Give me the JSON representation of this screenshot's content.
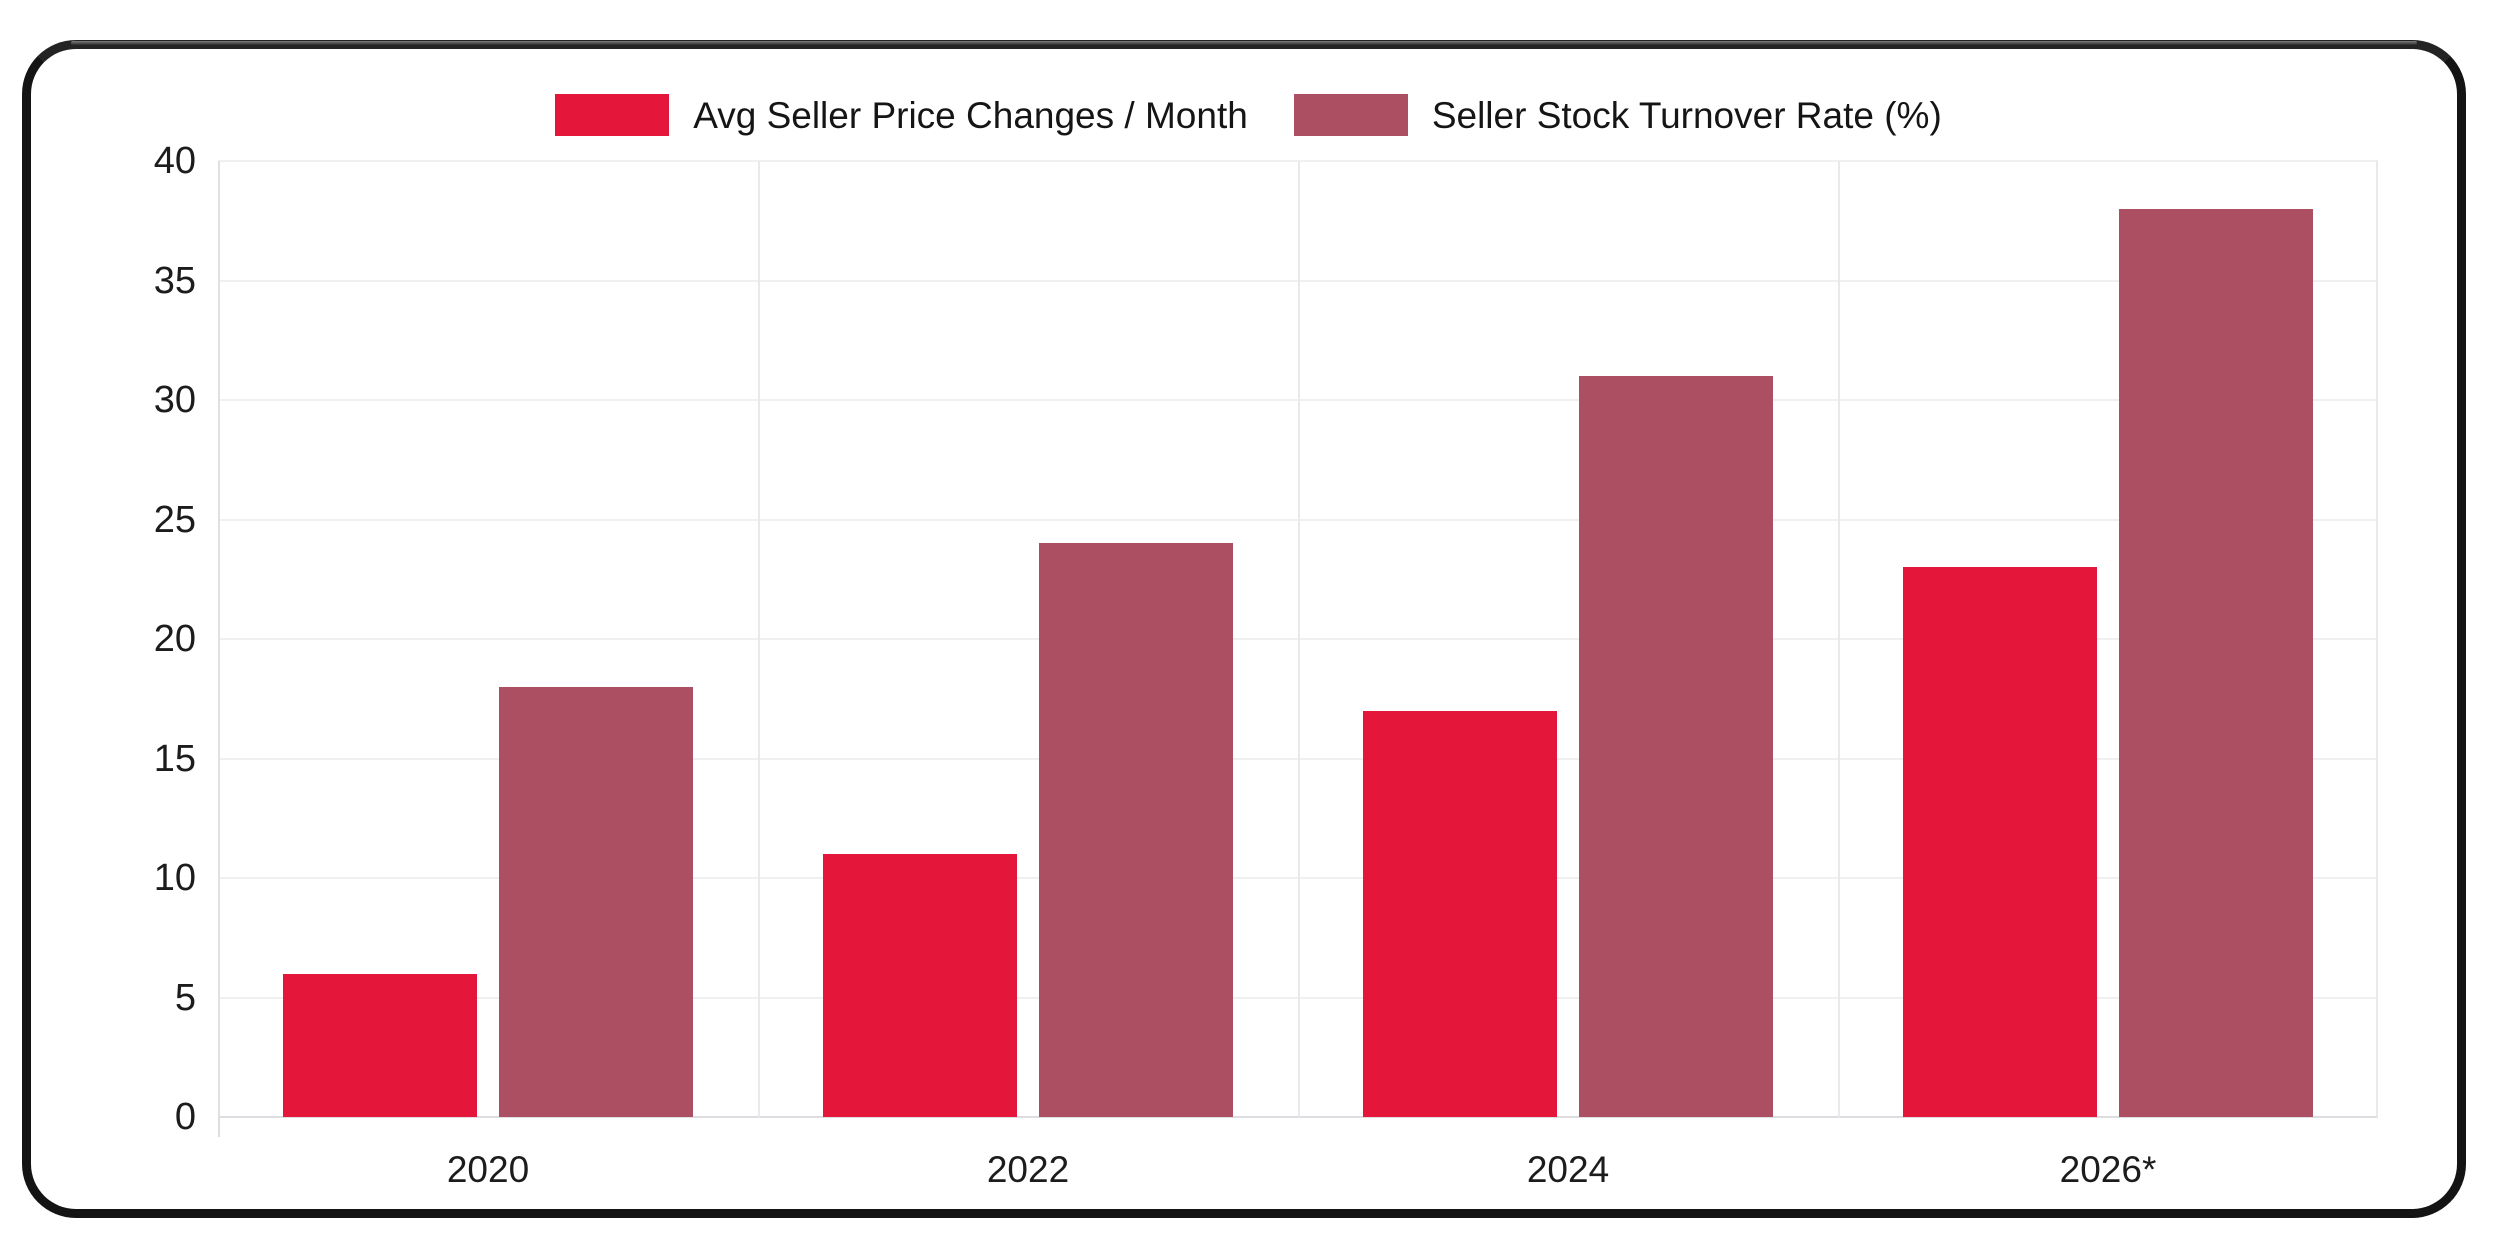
{
  "colors": {
    "series_price_changes": "#e4163a",
    "series_turnover_rate": "#ad4f63",
    "frame_border": "#141414",
    "gridline": "#f0f0f2",
    "axis_line": "#dedee2",
    "text": "#1c1c1c",
    "background": "#ffffff"
  },
  "legend": {
    "item_1": "Avg Seller Price Changes / Month",
    "item_2": "Seller Stock Turnover Rate (%)"
  },
  "chart_data": {
    "type": "bar",
    "title": "",
    "xlabel": "",
    "ylabel": "",
    "categories": [
      "2020",
      "2022",
      "2024",
      "2026*"
    ],
    "series": [
      {
        "name": "Avg Seller Price Changes / Month",
        "color": "#e4163a",
        "values": [
          6,
          11,
          17,
          23
        ]
      },
      {
        "name": "Seller Stock Turnover Rate (%)",
        "color": "#ad4f63",
        "values": [
          18,
          24,
          31,
          38
        ]
      }
    ],
    "ylim": [
      0,
      40
    ],
    "yticks": [
      0,
      5,
      10,
      15,
      20,
      25,
      30,
      35,
      40
    ],
    "grid": "on",
    "legend_position": "top-center"
  }
}
